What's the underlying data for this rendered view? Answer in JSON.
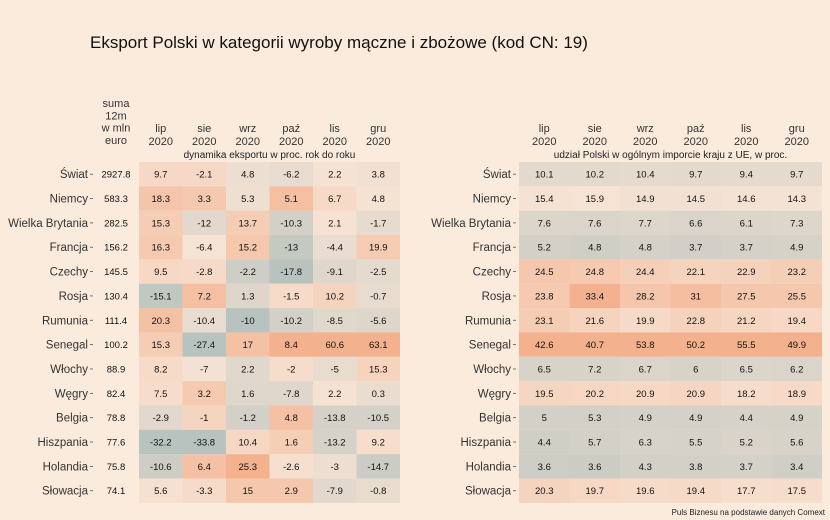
{
  "chart_data": {
    "type": "heatmap",
    "title": "Eksport Polski w kategorii wyroby mączne i zbożowe (kod CN: 19)",
    "caption": "Puls Biznesu na podstawie danych Comext",
    "countries": [
      "Świat",
      "Niemcy",
      "Wielka Brytania",
      "Francja",
      "Czechy",
      "Rosja",
      "Rumunia",
      "Senegal",
      "Włochy",
      "Węgry",
      "Belgia",
      "Hiszpania",
      "Holandia",
      "Słowacja"
    ],
    "sum_header": [
      "suma",
      "12m",
      "w mln",
      "euro"
    ],
    "sum_values": [
      "2927.8",
      "583.3",
      "282.5",
      "156.2",
      "145.5",
      "130.4",
      "111.4",
      "100.2",
      "88.9",
      "82.4",
      "78.8",
      "77.6",
      "75.8",
      "74.1"
    ],
    "months": [
      [
        "lip",
        "2020"
      ],
      [
        "sie",
        "2020"
      ],
      [
        "wrz",
        "2020"
      ],
      [
        "paź",
        "2020"
      ],
      [
        "lis",
        "2020"
      ],
      [
        "gru",
        "2020"
      ]
    ],
    "left_panel": {
      "subtitle": "dynamika eksportu w proc. rok do roku",
      "values": [
        [
          9.7,
          -2.1,
          4.8,
          -6.2,
          2.2,
          3.8
        ],
        [
          18.3,
          3.3,
          5.3,
          5.1,
          6.7,
          4.8
        ],
        [
          15.3,
          -12,
          13.7,
          -10.3,
          2.1,
          -1.7
        ],
        [
          16.3,
          -6.4,
          15.2,
          -13,
          -4.4,
          19.9
        ],
        [
          9.5,
          -2.8,
          -2.2,
          -17.8,
          -9.1,
          -2.5
        ],
        [
          -15.1,
          7.2,
          1.3,
          -1.5,
          10.2,
          -0.7
        ],
        [
          20.3,
          -10.4,
          -10,
          -10.2,
          -8.5,
          -5.6
        ],
        [
          15.3,
          -27.4,
          17,
          8.4,
          60.6,
          63.1
        ],
        [
          8.2,
          -7,
          2.2,
          -2,
          -5,
          15.3
        ],
        [
          7.5,
          3.2,
          1.6,
          -7.8,
          2.2,
          0.3
        ],
        [
          -2.9,
          -1,
          -1.2,
          4.8,
          -13.8,
          -10.5
        ],
        [
          -32.2,
          -33.8,
          10.4,
          1.6,
          -13.2,
          9.2
        ],
        [
          -10.6,
          6.4,
          25.3,
          -2.6,
          -3,
          -14.7
        ],
        [
          5.6,
          -3.3,
          15,
          2.9,
          -7.9,
          -0.8
        ]
      ]
    },
    "right_panel": {
      "subtitle": "udział Polski w ogólnym imporcie kraju z UE, w proc.",
      "values": [
        [
          10.1,
          10.2,
          10.4,
          9.7,
          9.4,
          9.7
        ],
        [
          15.4,
          15.9,
          14.9,
          14.5,
          14.6,
          14.3
        ],
        [
          7.6,
          7.6,
          7.7,
          6.6,
          6.1,
          7.3
        ],
        [
          5.2,
          4.8,
          4.8,
          3.7,
          3.7,
          4.9
        ],
        [
          24.5,
          24.8,
          24.4,
          22.1,
          22.9,
          23.2
        ],
        [
          23.8,
          33.4,
          28.2,
          31,
          27.5,
          25.5
        ],
        [
          23.1,
          21.6,
          19.9,
          22.8,
          21.2,
          19.4
        ],
        [
          42.6,
          40.7,
          53.8,
          50.2,
          55.5,
          49.9
        ],
        [
          6.5,
          7.2,
          6.7,
          6,
          6.5,
          6.2
        ],
        [
          19.5,
          20.2,
          20.9,
          20.9,
          18.2,
          18.9
        ],
        [
          5,
          5.3,
          4.9,
          4.9,
          4.4,
          4.9
        ],
        [
          4.4,
          5.7,
          6.3,
          5.5,
          5.2,
          5.6
        ],
        [
          3.6,
          3.6,
          4.3,
          3.8,
          3.7,
          3.4
        ],
        [
          20.3,
          19.7,
          19.6,
          19.4,
          17.7,
          17.5
        ]
      ]
    },
    "colors": {
      "background": "#faebdd",
      "low": "#b8c2be",
      "mid": "#f6e3d4",
      "high": "#f4b18e"
    }
  }
}
